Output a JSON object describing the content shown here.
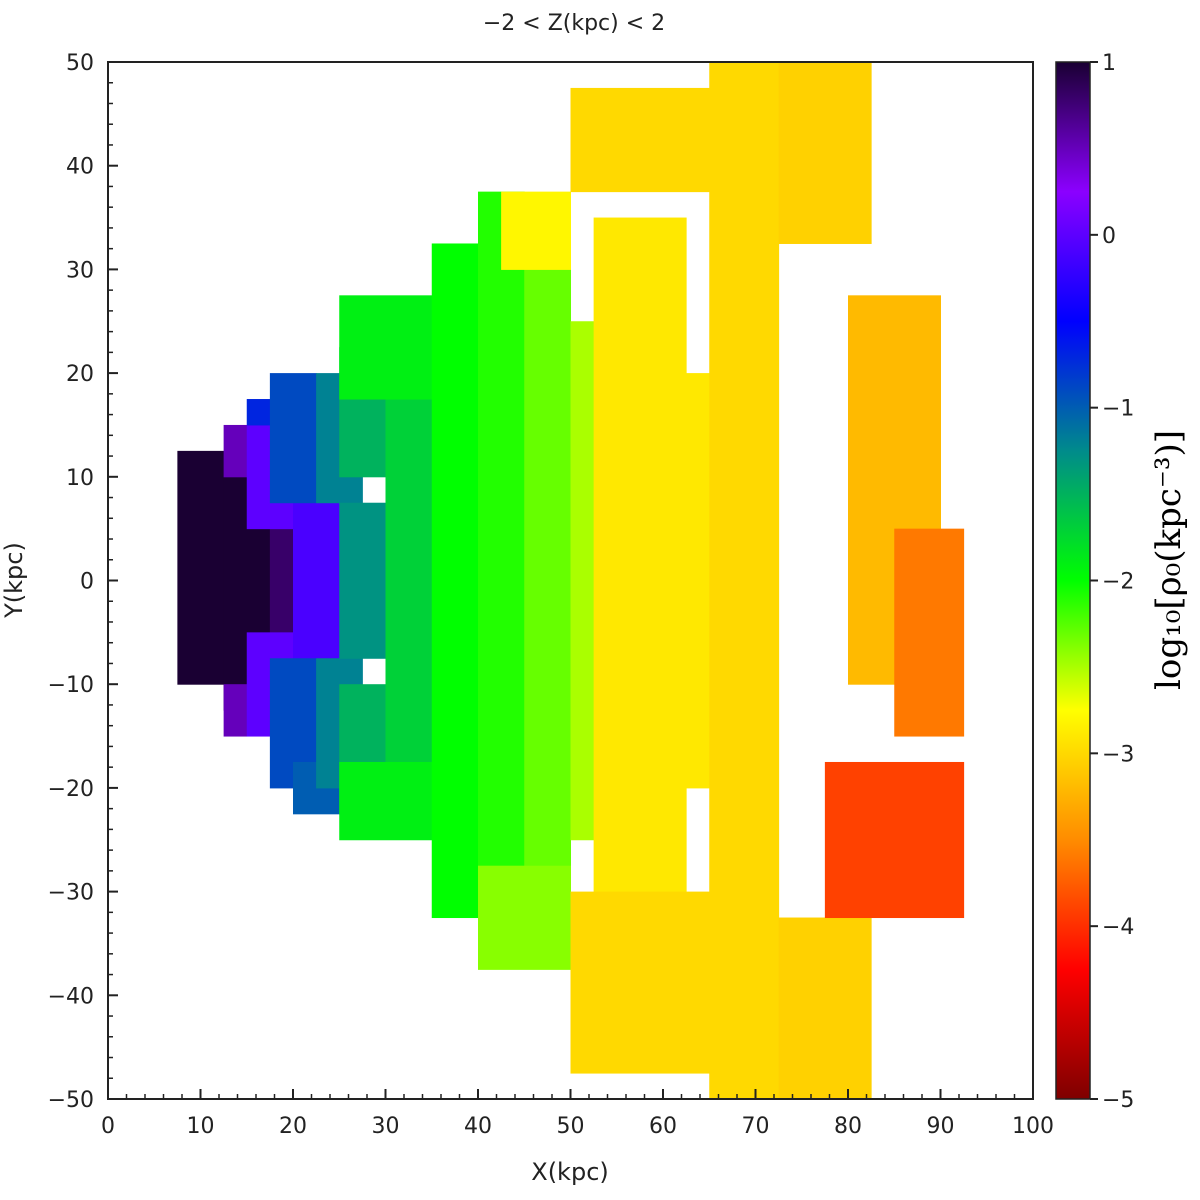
{
  "chart_data": {
    "type": "heatmap",
    "title": "−2 < Z(kpc) < 2",
    "xlabel": "X(kpc)",
    "ylabel": "Y(kpc)",
    "xlim": [
      0,
      100
    ],
    "ylim": [
      -50,
      50
    ],
    "x_ticks": [
      "0",
      "10",
      "20",
      "30",
      "40",
      "50",
      "60",
      "70",
      "80",
      "90",
      "100"
    ],
    "y_ticks": [
      "50",
      "40",
      "30",
      "20",
      "10",
      "0",
      "−10",
      "−20",
      "−30",
      "−40",
      "−50"
    ],
    "colorbar": {
      "label": "log₁₀[ρ₀(kpc⁻³)]",
      "range": [
        -5,
        1
      ],
      "ticks": [
        "1",
        "0",
        "−1",
        "−2",
        "−3",
        "−4",
        "−5"
      ],
      "colormap": [
        "#7f0000",
        "#ff0000",
        "#ff8c00",
        "#ffff00",
        "#00ff00",
        "#008b8b",
        "#0000ff",
        "#8b00ff",
        "#1a0033"
      ]
    },
    "grid": false,
    "cell_size_kpc": 2.5,
    "regions": [
      {
        "x": [
          7.5,
          12.5
        ],
        "y": [
          -10,
          12.5
        ],
        "value": 1.0
      },
      {
        "x": [
          12.5,
          17.5
        ],
        "y": [
          -12.5,
          10
        ],
        "value": 1.0
      },
      {
        "x": [
          17.5,
          20
        ],
        "y": [
          -5,
          5
        ],
        "value": 0.8
      },
      {
        "x": [
          12.5,
          15
        ],
        "y": [
          10,
          15
        ],
        "value": 0.5
      },
      {
        "x": [
          12.5,
          15
        ],
        "y": [
          -15,
          -10
        ],
        "value": 0.5
      },
      {
        "x": [
          15,
          20
        ],
        "y": [
          5,
          15
        ],
        "value": 0.0
      },
      {
        "x": [
          15,
          20
        ],
        "y": [
          -15,
          -5
        ],
        "value": 0.0
      },
      {
        "x": [
          20,
          25
        ],
        "y": [
          -7.5,
          7.5
        ],
        "value": -0.1
      },
      {
        "x": [
          15,
          17.5
        ],
        "y": [
          15,
          17.5
        ],
        "value": -0.7
      },
      {
        "x": [
          17.5,
          22.5
        ],
        "y": [
          7.5,
          20
        ],
        "value": -0.9
      },
      {
        "x": [
          17.5,
          22.5
        ],
        "y": [
          -20,
          -7.5
        ],
        "value": -0.9
      },
      {
        "x": [
          20,
          25
        ],
        "y": [
          -22.5,
          -17.5
        ],
        "value": -1.0
      },
      {
        "x": [
          22.5,
          27.5
        ],
        "y": [
          7.5,
          20
        ],
        "value": -1.2
      },
      {
        "x": [
          22.5,
          27.5
        ],
        "y": [
          -20,
          -7.5
        ],
        "value": -1.2
      },
      {
        "x": [
          25,
          30
        ],
        "y": [
          -7.5,
          7.5
        ],
        "value": -1.3
      },
      {
        "x": [
          25,
          30
        ],
        "y": [
          10,
          22.5
        ],
        "value": -1.5
      },
      {
        "x": [
          25,
          30
        ],
        "y": [
          -22.5,
          -10
        ],
        "value": -1.5
      },
      {
        "x": [
          30,
          35
        ],
        "y": [
          -17.5,
          17.5
        ],
        "value": -1.7
      },
      {
        "x": [
          25,
          35
        ],
        "y": [
          17.5,
          27.5
        ],
        "value": -1.9
      },
      {
        "x": [
          25,
          35
        ],
        "y": [
          -25,
          -17.5
        ],
        "value": -1.9
      },
      {
        "x": [
          35,
          40
        ],
        "y": [
          -32.5,
          32.5
        ],
        "value": -2.0
      },
      {
        "x": [
          40,
          45
        ],
        "y": [
          -32.5,
          37.5
        ],
        "value": -2.1
      },
      {
        "x": [
          45,
          50
        ],
        "y": [
          -30,
          30
        ],
        "value": -2.3
      },
      {
        "x": [
          40,
          50
        ],
        "y": [
          -37.5,
          -27.5
        ],
        "value": -2.4
      },
      {
        "x": [
          50,
          52.5
        ],
        "y": [
          -25,
          25
        ],
        "value": -2.5
      },
      {
        "x": [
          42.5,
          50
        ],
        "y": [
          30,
          37.5
        ],
        "value": -2.8
      },
      {
        "x": [
          52.5,
          62.5
        ],
        "y": [
          -30,
          35
        ],
        "value": -2.9
      },
      {
        "x": [
          62.5,
          65
        ],
        "y": [
          -20,
          20
        ],
        "value": -2.9
      },
      {
        "x": [
          50,
          65
        ],
        "y": [
          37.5,
          47.5
        ],
        "value": -3.0
      },
      {
        "x": [
          50,
          65
        ],
        "y": [
          -47.5,
          -30
        ],
        "value": -3.0
      },
      {
        "x": [
          65,
          72.5
        ],
        "y": [
          -50,
          50
        ],
        "value": -3.0
      },
      {
        "x": [
          72.5,
          82.5
        ],
        "y": [
          32.5,
          50
        ],
        "value": -3.05
      },
      {
        "x": [
          72.5,
          82.5
        ],
        "y": [
          -50,
          -32.5
        ],
        "value": -3.05
      },
      {
        "x": [
          80,
          90
        ],
        "y": [
          -10,
          27.5
        ],
        "value": -3.2
      },
      {
        "x": [
          85,
          92.5
        ],
        "y": [
          -15,
          5
        ],
        "value": -3.6
      },
      {
        "x": [
          77.5,
          92.5
        ],
        "y": [
          -32.5,
          -17.5
        ],
        "value": -3.9
      }
    ]
  }
}
